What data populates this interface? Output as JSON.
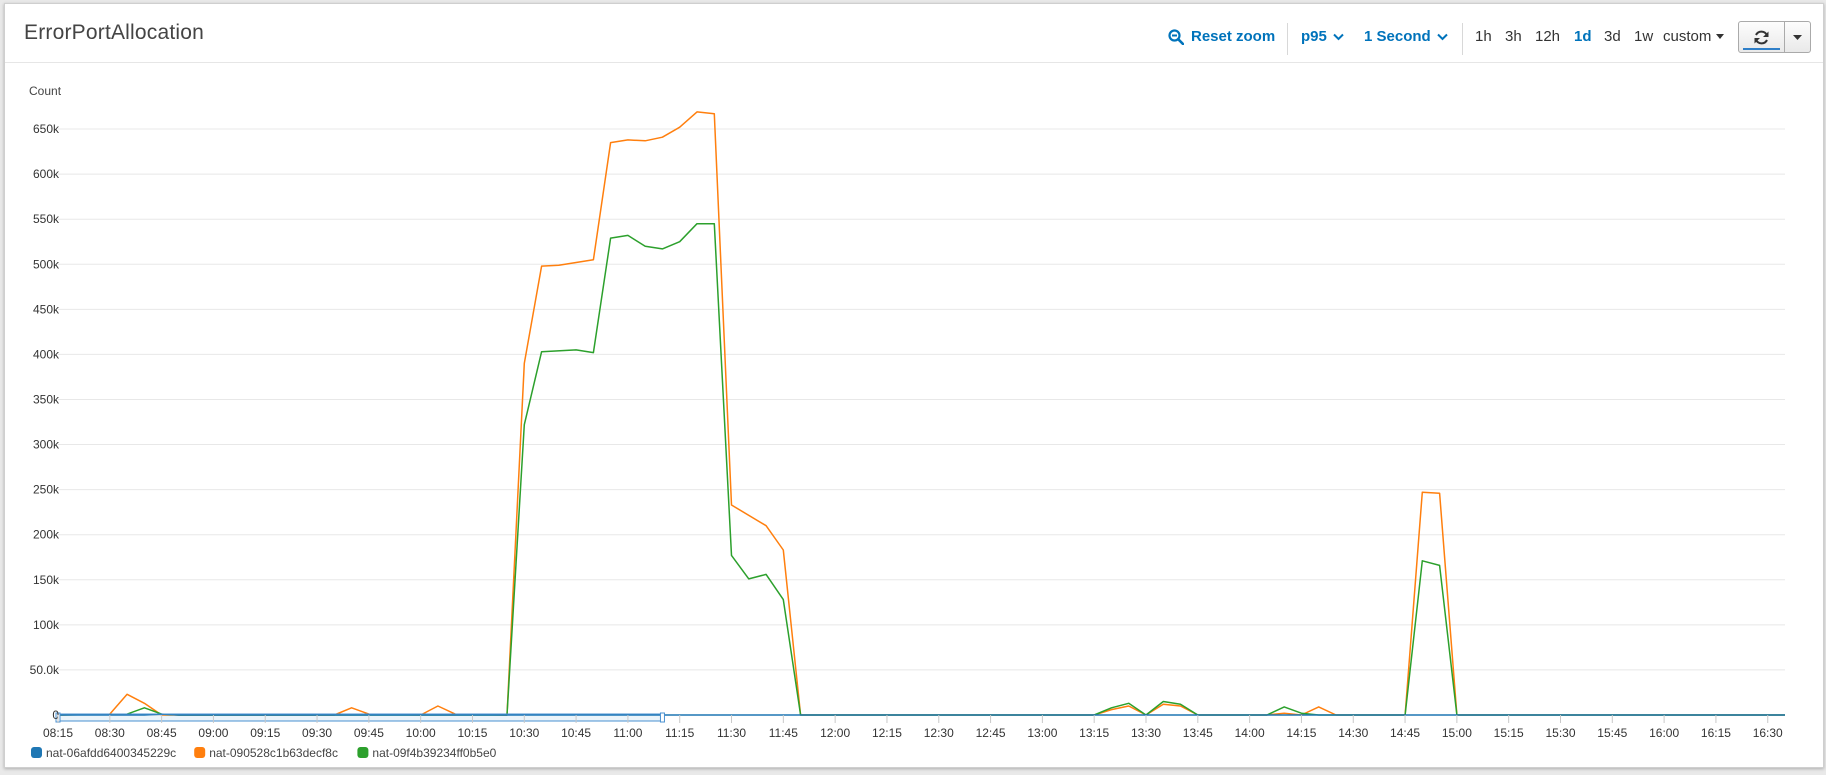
{
  "header": {
    "title": "ErrorPortAllocation",
    "reset_zoom_label": "Reset zoom",
    "statistic": "p95",
    "period": "1 Second",
    "ranges": [
      {
        "label": "1h",
        "active": false
      },
      {
        "label": "3h",
        "active": false
      },
      {
        "label": "12h",
        "active": false
      },
      {
        "label": "1d",
        "active": true
      },
      {
        "label": "3d",
        "active": false
      },
      {
        "label": "1w",
        "active": false
      }
    ],
    "custom_label": "custom"
  },
  "icons": {
    "reset_zoom": "zoom-out-icon",
    "dropdown": "chevron-down-icon",
    "refresh": "refresh-icon",
    "caret": "caret-down-icon"
  },
  "colors": {
    "accent": "#0073bb"
  },
  "chart_data": {
    "type": "line",
    "ylabel": "Count",
    "ylim": [
      0,
      680000
    ],
    "yticks": [
      0,
      50000,
      100000,
      150000,
      200000,
      250000,
      300000,
      350000,
      400000,
      450000,
      500000,
      550000,
      600000,
      650000
    ],
    "ytick_labels": [
      "0",
      "50.0k",
      "100k",
      "150k",
      "200k",
      "250k",
      "300k",
      "350k",
      "400k",
      "450k",
      "500k",
      "550k",
      "600k",
      "650k"
    ],
    "xlim": [
      "08:15",
      "16:35"
    ],
    "xtick_labels": [
      "08:15",
      "08:30",
      "08:45",
      "09:00",
      "09:15",
      "09:30",
      "09:45",
      "10:00",
      "10:15",
      "10:30",
      "10:45",
      "11:00",
      "11:15",
      "11:30",
      "11:45",
      "12:00",
      "12:15",
      "12:30",
      "12:45",
      "13:00",
      "13:15",
      "13:30",
      "13:45",
      "14:00",
      "14:15",
      "14:30",
      "14:45",
      "15:00",
      "15:15",
      "15:30",
      "15:45",
      "16:00",
      "16:15",
      "16:30"
    ],
    "grid": true,
    "legend_position": "bottom-left",
    "series": [
      {
        "name": "nat-06afdd6400345229c",
        "color": "#1f77b4",
        "points": [
          [
            "08:15",
            0
          ],
          [
            "08:40",
            0
          ],
          [
            "08:45",
            1000
          ],
          [
            "08:50",
            0
          ],
          [
            "16:35",
            0
          ]
        ]
      },
      {
        "name": "nat-090528c1b63decf8c",
        "color": "#ff7f0e",
        "points": [
          [
            "08:15",
            0
          ],
          [
            "08:30",
            1000
          ],
          [
            "08:35",
            23000
          ],
          [
            "08:40",
            13000
          ],
          [
            "08:45",
            0
          ],
          [
            "09:35",
            0
          ],
          [
            "09:40",
            8000
          ],
          [
            "09:45",
            1000
          ],
          [
            "10:00",
            0
          ],
          [
            "10:05",
            10000
          ],
          [
            "10:10",
            1000
          ],
          [
            "10:25",
            0
          ],
          [
            "10:30",
            390000
          ],
          [
            "10:35",
            498000
          ],
          [
            "10:40",
            499000
          ],
          [
            "10:50",
            505000
          ],
          [
            "10:55",
            635000
          ],
          [
            "11:00",
            638000
          ],
          [
            "11:05",
            637000
          ],
          [
            "11:10",
            641000
          ],
          [
            "11:15",
            652000
          ],
          [
            "11:20",
            669000
          ],
          [
            "11:25",
            667000
          ],
          [
            "11:30",
            233000
          ],
          [
            "11:40",
            210000
          ],
          [
            "11:45",
            183000
          ],
          [
            "11:50",
            0
          ],
          [
            "13:15",
            0
          ],
          [
            "13:20",
            6000
          ],
          [
            "13:25",
            10000
          ],
          [
            "13:30",
            0
          ],
          [
            "13:35",
            12000
          ],
          [
            "13:40",
            10000
          ],
          [
            "13:45",
            0
          ],
          [
            "14:05",
            0
          ],
          [
            "14:10",
            2000
          ],
          [
            "14:15",
            0
          ],
          [
            "14:20",
            9000
          ],
          [
            "14:25",
            0
          ],
          [
            "14:45",
            0
          ],
          [
            "14:50",
            247000
          ],
          [
            "14:55",
            246000
          ],
          [
            "15:00",
            0
          ],
          [
            "16:35",
            0
          ]
        ]
      },
      {
        "name": "nat-09f4b39234ff0b5e0",
        "color": "#2ca02c",
        "points": [
          [
            "08:15",
            0
          ],
          [
            "08:35",
            1000
          ],
          [
            "08:40",
            8000
          ],
          [
            "08:45",
            1000
          ],
          [
            "08:50",
            0
          ],
          [
            "10:25",
            0
          ],
          [
            "10:30",
            322000
          ],
          [
            "10:35",
            403000
          ],
          [
            "10:45",
            405000
          ],
          [
            "10:50",
            402000
          ],
          [
            "10:55",
            529000
          ],
          [
            "11:00",
            532000
          ],
          [
            "11:05",
            520000
          ],
          [
            "11:10",
            517000
          ],
          [
            "11:15",
            525000
          ],
          [
            "11:20",
            545000
          ],
          [
            "11:25",
            545000
          ],
          [
            "11:30",
            177000
          ],
          [
            "11:35",
            151000
          ],
          [
            "11:40",
            156000
          ],
          [
            "11:45",
            128000
          ],
          [
            "11:50",
            0
          ],
          [
            "13:15",
            0
          ],
          [
            "13:20",
            8000
          ],
          [
            "13:25",
            13000
          ],
          [
            "13:30",
            0
          ],
          [
            "13:35",
            15000
          ],
          [
            "13:40",
            12000
          ],
          [
            "13:45",
            0
          ],
          [
            "14:05",
            0
          ],
          [
            "14:10",
            9000
          ],
          [
            "14:15",
            2000
          ],
          [
            "14:20",
            0
          ],
          [
            "14:45",
            0
          ],
          [
            "14:50",
            171000
          ],
          [
            "14:55",
            166000
          ],
          [
            "15:00",
            0
          ],
          [
            "16:35",
            0
          ]
        ]
      }
    ],
    "navigator_selection": [
      "08:15",
      "11:10"
    ]
  }
}
